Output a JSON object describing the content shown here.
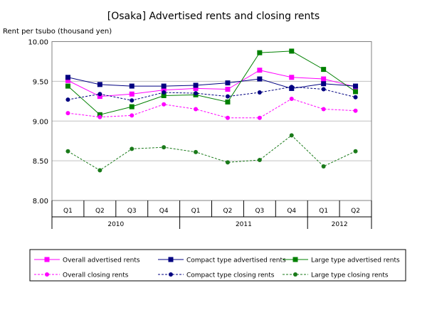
{
  "chart_data": {
    "type": "line",
    "title": "[Osaka] Advertised rents and closing rents",
    "ylabel": "Rent per tsubo (thousand yen)",
    "xlabel": "",
    "ylim": [
      8.0,
      10.0
    ],
    "yticks": [
      "8.00",
      "8.50",
      "9.00",
      "9.50",
      "10.00"
    ],
    "grid": true,
    "legend_placement": "bottom",
    "categories": [
      "Q1",
      "Q2",
      "Q3",
      "Q4",
      "Q1",
      "Q2",
      "Q3",
      "Q4",
      "Q1",
      "Q2"
    ],
    "years": [
      {
        "label": "2010",
        "span": 4
      },
      {
        "label": "2011",
        "span": 4
      },
      {
        "label": "2012",
        "span": 2
      }
    ],
    "series": [
      {
        "name": "Overall advertised rents",
        "color": "#ff00ff",
        "style": "solid",
        "marker": "square",
        "values": [
          9.51,
          9.31,
          9.34,
          9.39,
          9.41,
          9.4,
          9.64,
          9.55,
          9.53,
          9.43
        ]
      },
      {
        "name": "Compact type advertised rents",
        "color": "#000080",
        "style": "solid",
        "marker": "square",
        "values": [
          9.55,
          9.46,
          9.44,
          9.44,
          9.45,
          9.48,
          9.53,
          9.41,
          9.47,
          9.44
        ]
      },
      {
        "name": "Large type advertised rents",
        "color": "#008000",
        "style": "solid",
        "marker": "square",
        "values": [
          9.44,
          9.08,
          9.18,
          9.32,
          9.33,
          9.24,
          9.86,
          9.88,
          9.65,
          9.37
        ]
      },
      {
        "name": "Overall closing rents",
        "color": "#ff00ff",
        "style": "dashed",
        "marker": "circle",
        "values": [
          9.1,
          9.05,
          9.07,
          9.21,
          9.15,
          9.04,
          9.04,
          9.28,
          9.15,
          9.13
        ]
      },
      {
        "name": "Compact type closing rents",
        "color": "#000080",
        "style": "dashed",
        "marker": "circle",
        "values": [
          9.27,
          9.34,
          9.26,
          9.36,
          9.35,
          9.31,
          9.36,
          9.43,
          9.4,
          9.3
        ]
      },
      {
        "name": "Large type closing rents",
        "color": "#1a7a1a",
        "style": "dashed",
        "marker": "circle",
        "values": [
          8.62,
          8.38,
          8.65,
          8.67,
          8.61,
          8.48,
          8.51,
          8.82,
          8.43,
          8.62
        ]
      }
    ]
  }
}
